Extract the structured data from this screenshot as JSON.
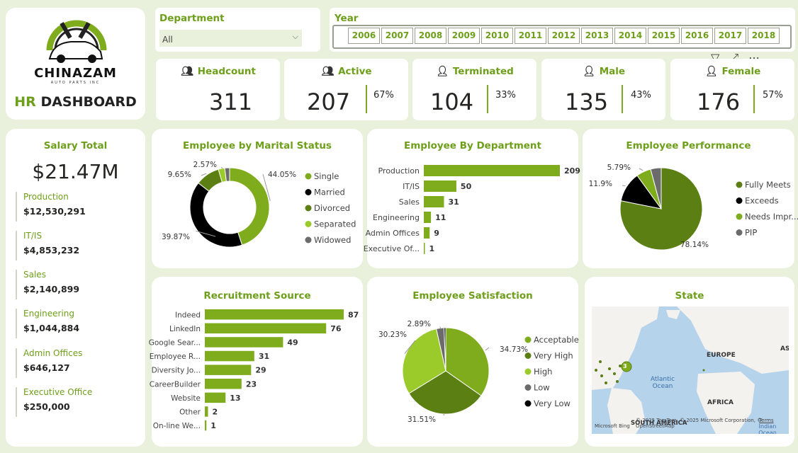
{
  "colors": {
    "accent": "#6e9f1a",
    "bg": "#e9f0dc",
    "dark": "#000000",
    "slice_green1": "#7fac1c",
    "slice_green2": "#5b7f13",
    "slice_green3": "#9bcb2b",
    "slice_grey": "#6b6b6b"
  },
  "logo": {
    "brand": "CHINAZAM",
    "sub": "AUTO PARTS INC",
    "title_hr": "HR",
    "title_rest": "DASHBOARD"
  },
  "filters": {
    "department": {
      "label": "Department",
      "value": "All"
    },
    "year": {
      "label": "Year",
      "options": [
        "2006",
        "2007",
        "2008",
        "2009",
        "2010",
        "2011",
        "2012",
        "2013",
        "2014",
        "2015",
        "2016",
        "2017",
        "2018"
      ]
    }
  },
  "kpis": [
    {
      "label": "Headcount",
      "icon": "people-icon",
      "value": "311",
      "pct": ""
    },
    {
      "label": "Active",
      "icon": "group-icon",
      "value": "207",
      "pct": "67%"
    },
    {
      "label": "Terminated",
      "icon": "person-terminated-icon",
      "value": "104",
      "pct": "33%"
    },
    {
      "label": "Male",
      "icon": "male-icon",
      "value": "135",
      "pct": "43%"
    },
    {
      "label": "Female",
      "icon": "female-icon",
      "value": "176",
      "pct": "57%"
    }
  ],
  "salary": {
    "title": "Salary Total",
    "total": "$21.47M",
    "items": [
      {
        "name": "Production",
        "value": "$12,530,291"
      },
      {
        "name": "IT/IS",
        "value": "$4,853,232"
      },
      {
        "name": "Sales",
        "value": "$2,140,899"
      },
      {
        "name": "Engineering",
        "value": "$1,044,884"
      },
      {
        "name": "Admin Offices",
        "value": "$646,127"
      },
      {
        "name": "Executive Office",
        "value": "$250,000"
      }
    ]
  },
  "chart_data": [
    {
      "id": "marital",
      "type": "pie",
      "donut": true,
      "title": "Employee by Marital Status",
      "categories": [
        "Single",
        "Married",
        "Divorced",
        "Separated",
        "Widowed"
      ],
      "values": [
        44.05,
        39.87,
        9.65,
        2.57,
        1.93
      ],
      "labels": [
        "44.05%",
        "39.87%",
        "9.65%",
        "2.57%",
        ""
      ],
      "colors": [
        "#7fac1c",
        "#000000",
        "#5b7f13",
        "#9bcb2b",
        "#6b6b6b"
      ],
      "legend": "right"
    },
    {
      "id": "department",
      "type": "bar",
      "orientation": "horizontal",
      "title": "Employee By Department",
      "categories": [
        "Production",
        "IT/IS",
        "Sales",
        "Engineering",
        "Admin Offices",
        "Executive Of..."
      ],
      "values": [
        209,
        50,
        31,
        11,
        9,
        1
      ]
    },
    {
      "id": "performance",
      "type": "pie",
      "title": "Employee Performance",
      "categories": [
        "Fully Meets",
        "Exceeds",
        "Needs Impr...",
        "PIP"
      ],
      "values": [
        78.14,
        11.9,
        5.79,
        4.17
      ],
      "labels": [
        "78.14%",
        "11.9%",
        "5.79%",
        ""
      ],
      "colors": [
        "#5b7f13",
        "#000000",
        "#7fac1c",
        "#6b6b6b"
      ],
      "legend": "right"
    },
    {
      "id": "recruitment",
      "type": "bar",
      "orientation": "horizontal",
      "title": "Recruitment Source",
      "categories": [
        "Indeed",
        "LinkedIn",
        "Google Sear...",
        "Employee R...",
        "Diversity Jo...",
        "CareerBuilder",
        "Website",
        "Other",
        "On-line We..."
      ],
      "values": [
        87,
        76,
        49,
        31,
        29,
        23,
        13,
        2,
        1
      ]
    },
    {
      "id": "satisfaction",
      "type": "pie",
      "title": "Employee Satisfaction",
      "categories": [
        "Acceptable",
        "Very High",
        "High",
        "Low",
        "Very Low"
      ],
      "values": [
        34.73,
        31.51,
        30.23,
        2.89,
        0.64
      ],
      "labels": [
        "34.73%",
        "31.51%",
        "30.23%",
        "2.89%",
        ""
      ],
      "colors": [
        "#7fac1c",
        "#5b7f13",
        "#9bcb2b",
        "#6b6b6b",
        "#000000"
      ],
      "legend": "right"
    }
  ],
  "state": {
    "title": "State",
    "labels": {
      "europe": "EUROPE",
      "atlantic": "Atlantic Ocean",
      "africa": "AFRICA",
      "south_america": "SOUTH AMERICA",
      "asia": "ASI",
      "indian": "Indian Ocean"
    },
    "cluster_count": "3",
    "credit": "© 2025 TomTom, © 2025 Microsoft Corporation, © OpenStreetMap",
    "terms": "Terms",
    "bing": "Microsoft Bing"
  }
}
